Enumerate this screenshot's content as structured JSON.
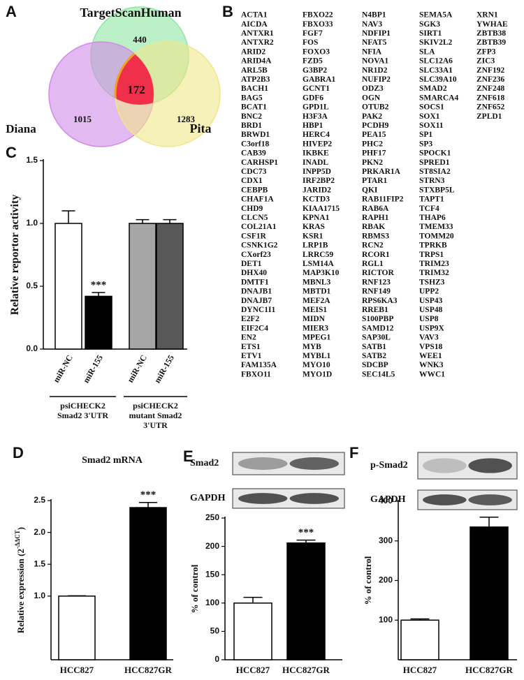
{
  "chart_data": [
    {
      "type": "venn",
      "panel_label": "A",
      "sets": [
        {
          "name": "TargetScanHuman",
          "color": "#8fe6a0",
          "label_color": "#2eb86b"
        },
        {
          "name": "Diana",
          "color": "#d08ae8",
          "label_color": "#e040c0"
        },
        {
          "name": "Pita",
          "color": "#f0e68a",
          "label_color": "#e03a3a"
        }
      ],
      "center_color": "#f0304a",
      "regions": [
        {
          "value": 440,
          "in": [
            0
          ]
        },
        {
          "value": 1015,
          "in": [
            1
          ]
        },
        {
          "value": 1283,
          "in": [
            2
          ]
        },
        {
          "value": 172,
          "in": [
            0,
            1,
            2
          ]
        }
      ]
    },
    {
      "type": "bar",
      "panel_label": "C",
      "ylabel": "Relative reportor activity",
      "categories": [
        "miR-NC",
        "miR-155",
        "miR-NC",
        "miR-155"
      ],
      "values": [
        1,
        0.42,
        1,
        1
      ],
      "errors": [
        0.1,
        0.03,
        0.03,
        0.03
      ],
      "colors": [
        "#ffffff",
        "#000000",
        "#a6a6a6",
        "#595959"
      ],
      "value_annotations": [
        null,
        "***",
        null,
        null
      ],
      "groups": [
        {
          "lines": [
            "psiCHECK2",
            "Smad2 3'UTR"
          ]
        },
        {
          "lines": [
            "psiCHECK2",
            "mutant Smad2",
            "3'UTR"
          ]
        }
      ],
      "ylim": [
        0,
        1.5
      ],
      "yticks": [
        {
          "value": 0,
          "label": "0.0"
        },
        0.5,
        {
          "value": 1,
          "label": "1.0"
        },
        1.5
      ]
    },
    {
      "type": "bar",
      "panel_label": "D",
      "title": "Smad2 mRNA",
      "ylabel": "Relative expression (2",
      "ylabel_sup": "-ΔΔCT",
      "ylabel_end": ")",
      "categories": [
        "HCC827",
        "HCC827GR"
      ],
      "values": [
        1,
        2.39
      ],
      "errors": [
        0.005,
        0.08
      ],
      "colors": [
        "#ffffff",
        "#000000"
      ],
      "value_annotations": [
        null,
        "***"
      ],
      "ylim": [
        0,
        2.5
      ],
      "yticks": [
        {
          "value": 1,
          "label": "1.0"
        },
        1.5,
        {
          "value": 2,
          "label": "2.0"
        },
        2.5
      ]
    },
    {
      "type": "bar",
      "panel_label": "E",
      "ylabel": "% of control",
      "blots": [
        {
          "label": "Smad2"
        },
        {
          "label": "GAPDH"
        }
      ],
      "categories": [
        "HCC827",
        "HCC827GR"
      ],
      "values": [
        100,
        206
      ],
      "errors": [
        10,
        5
      ],
      "colors": [
        "#ffffff",
        "#000000"
      ],
      "value_annotations": [
        null,
        "***"
      ],
      "ylim": [
        0,
        250
      ],
      "yticks": [
        0,
        50,
        100,
        150,
        200,
        250
      ]
    },
    {
      "type": "bar",
      "panel_label": "F",
      "ylabel": "% of control",
      "blots": [
        {
          "label": "p-Smad2"
        },
        {
          "label": "GAPDH"
        }
      ],
      "categories": [
        "HCC827",
        "HCC827GR"
      ],
      "values": [
        100,
        335
      ],
      "errors": [
        3,
        25
      ],
      "colors": [
        "#ffffff",
        "#000000"
      ],
      "value_annotations": [
        null,
        "***"
      ],
      "ylim": [
        0,
        400
      ],
      "yticks": [
        100,
        200,
        300,
        400
      ]
    }
  ],
  "gene_list": {
    "panel_label": "B",
    "highlight": [
      3,
      8
    ],
    "highlight_color": "#e03030",
    "columns": [
      [
        "ACTA1",
        "AICDA",
        "ANTXR1",
        "ANTXR2",
        "ARID2",
        "ARID4A",
        "ARL5B",
        "ATP2B3",
        "BACH1",
        "BAG5",
        "BCAT1",
        "BNC2",
        "BRD1",
        "BRWD1",
        "C3orf18",
        "CAB39",
        "CARHSP1",
        "CDC73",
        "CDX1",
        "CEBPB",
        "CHAF1A",
        "CHD9",
        "CLCN5",
        "COL21A1",
        "CSF1R",
        "CSNK1G2",
        "CXorf23",
        "DET1",
        "DHX40",
        "DMTF1",
        "DNAJB1",
        "DNAJB7",
        "DYNC1I1",
        "E2F2",
        "EIF2C4",
        "EN2",
        "ETS1",
        "ETV1",
        "FAM135A",
        "FBXO11"
      ],
      [
        "FBXO22",
        "FBXO33",
        "FGF7",
        "FOS",
        "FOXO3",
        "FZD5",
        "G3BP2",
        "GABRA1",
        "GCNT1",
        "GDF6",
        "GPD1L",
        "H3F3A",
        "HBP1",
        "HERC4",
        "HIVEP2",
        "IKBKE",
        "INADL",
        "INPP5D",
        "IRF2BP2",
        "JARID2",
        "KCTD3",
        "KIAA1715",
        "KPNA1",
        "KRAS",
        "KSR1",
        "LRP1B",
        "LRRC59",
        "LSM14A",
        "MAP3K10",
        "MBNL3",
        "MBTD1",
        "MEF2A",
        "MEIS1",
        "MIDN",
        "MIER3",
        "MPEG1",
        "MYB",
        "MYBL1",
        "MYO10",
        "MYO1D"
      ],
      [
        "N4BP1",
        "NAV3",
        "NDFIP1",
        "NFAT5",
        "NFIA",
        "NOVA1",
        "NR1D2",
        "NUFIP2",
        "ODZ3",
        "OGN",
        "OTUB2",
        "PAK2",
        "PCDH9",
        "PEA15",
        "PHC2",
        "PHF17",
        "PKN2",
        "PRKAR1A",
        "PTAR1",
        "QKI",
        "RAB11FIP2",
        "RAB6A",
        "RAPH1",
        "RBAK",
        "RBMS3",
        "RCN2",
        "RCOR1",
        "RGL1",
        "RICTOR",
        "RNF123",
        "RNF149",
        "RPS6KA3",
        "RREB1",
        "S100PBP",
        "SAMD12",
        "SAP30L",
        "SATB1",
        "SATB2",
        "SDCBP",
        "SEC14L5"
      ],
      [
        "SEMA5A",
        "SGK3",
        "SIRT1",
        "SKIV2L2",
        "SLA",
        "SLC12A6",
        "SLC33A1",
        "SLC39A10",
        "SMAD2",
        "SMARCA4",
        "SOCS1",
        "SOX1",
        "SOX11",
        "SP1",
        "SP3",
        "SPOCK1",
        "SPRED1",
        "ST8SIA2",
        "STRN3",
        "STXBP5L",
        "TAPT1",
        "TCF4",
        "THAP6",
        "TMEM33",
        "TOMM20",
        "TPRKB",
        "TRPS1",
        "TRIM23",
        "TRIM32",
        "TSHZ3",
        "UPP2",
        "USP43",
        "USP48",
        "USP8",
        "USP9X",
        "VAV3",
        "VPS18",
        "WEE1",
        "WNK3",
        "WWC1"
      ],
      [
        "XRN1",
        "YWHAE",
        "ZBTB38",
        "ZBTB39",
        "ZFP3",
        "ZIC3",
        "ZNF192",
        "ZNF236",
        "ZNF248",
        "ZNF618",
        "ZNF652",
        "ZPLD1"
      ]
    ]
  }
}
